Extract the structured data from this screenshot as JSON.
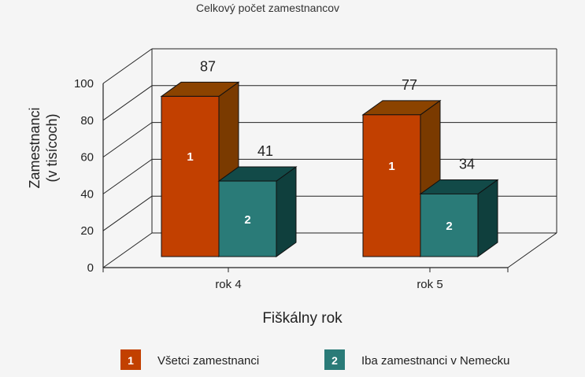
{
  "chart_data": {
    "type": "bar",
    "title": "Celkový počet zamestnancov",
    "xlabel": "Fiškálny rok",
    "ylabel": [
      "Zamestnanci",
      "(v tisícoch)"
    ],
    "categories": [
      "rok 4",
      "rok 5"
    ],
    "series": [
      {
        "name": "Všetci zamestnanci",
        "marker": "1",
        "values": [
          87,
          77
        ],
        "color": "#c24000",
        "side_color": "#7a3a00",
        "top_color": "#8b4300"
      },
      {
        "name": "Iba zamestnanci v Nemecku",
        "marker": "2",
        "values": [
          41,
          34
        ],
        "color": "#2a7b78",
        "side_color": "#0f3f3d",
        "top_color": "#124a48"
      }
    ],
    "ylim": [
      0,
      100
    ],
    "yticks": [
      0,
      20,
      40,
      60,
      80,
      100
    ],
    "grid": true,
    "legend": "bottom",
    "style": "3d"
  }
}
